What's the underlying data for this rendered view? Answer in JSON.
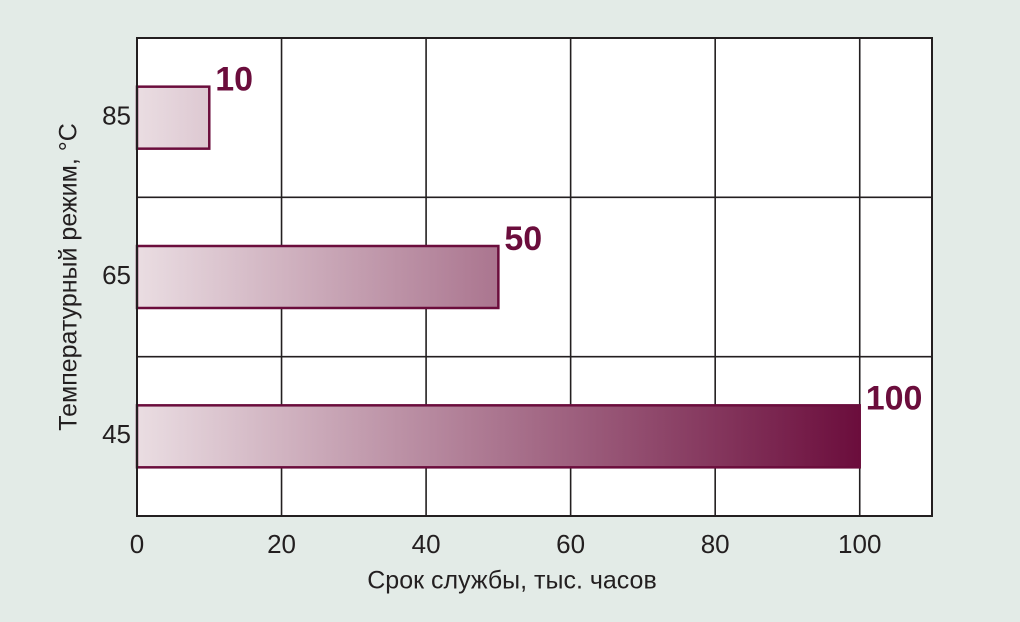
{
  "chart_data": {
    "type": "bar",
    "orientation": "horizontal",
    "categories": [
      "85",
      "65",
      "45"
    ],
    "values": [
      10,
      50,
      100
    ],
    "color": "#6b0d3c",
    "xlabel": "Срок службы, тыс. часов",
    "ylabel": "Температурный режим, °С",
    "xlim": [
      0,
      110
    ],
    "xticks": [
      0,
      20,
      40,
      60,
      80,
      100
    ],
    "grid": true
  }
}
